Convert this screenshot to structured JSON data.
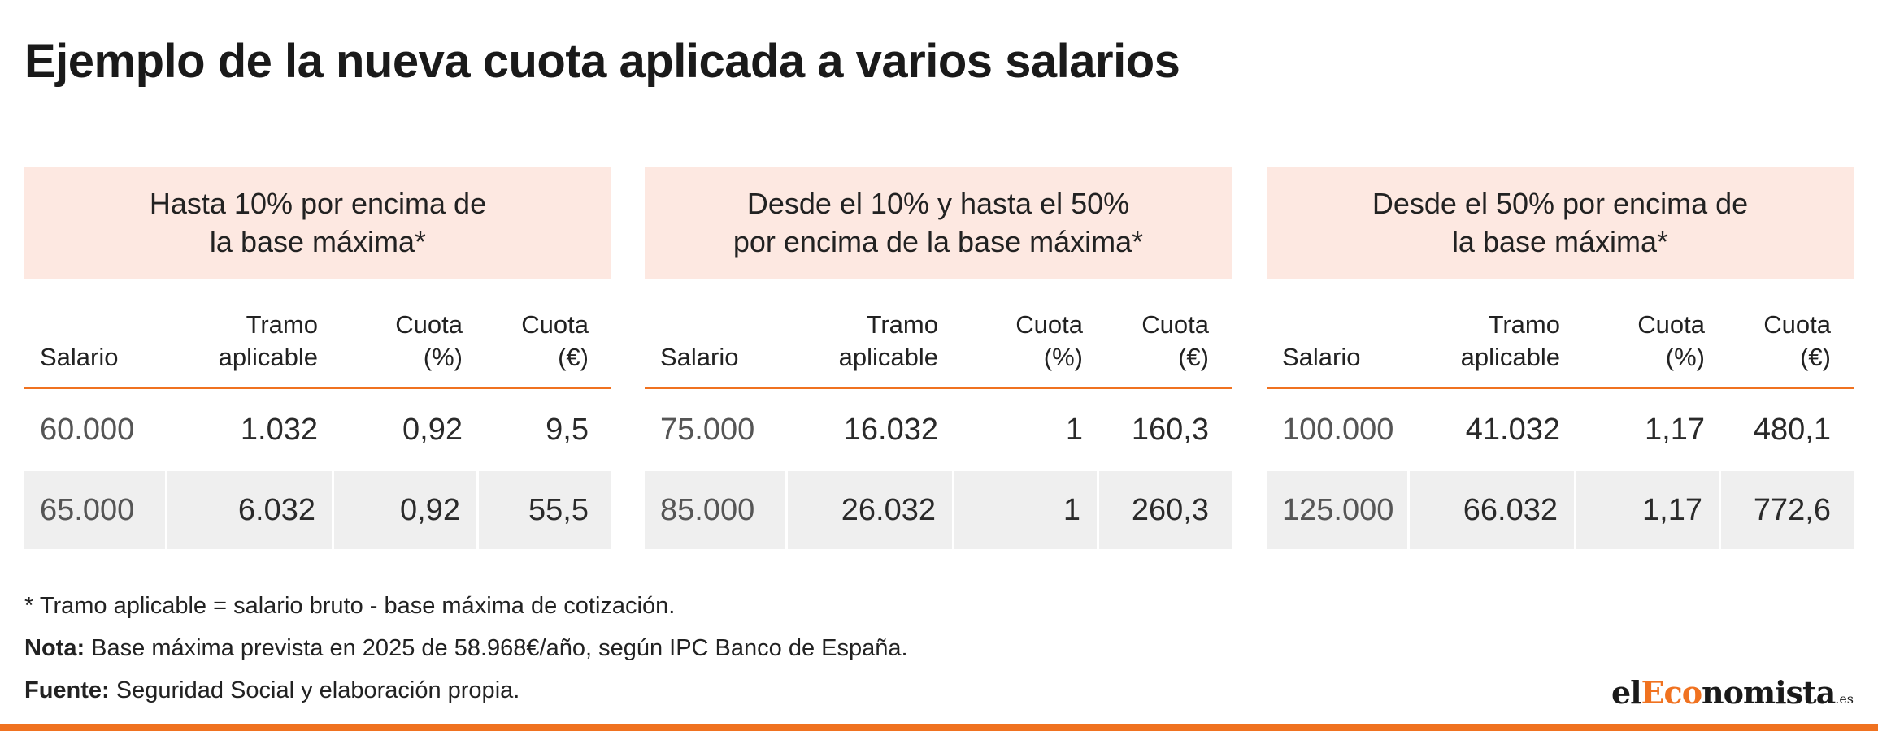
{
  "title": "Ejemplo de la nueva cuota aplicada a varios salarios",
  "colors": {
    "accent": "#f07220",
    "header_bg": "#fde8e1",
    "row_alt_bg": "#efefef"
  },
  "columns": [
    {
      "lines": [
        "Salario"
      ]
    },
    {
      "lines": [
        "Tramo",
        "aplicable"
      ]
    },
    {
      "lines": [
        "Cuota",
        "(%)"
      ]
    },
    {
      "lines": [
        "Cuota",
        "(€)"
      ]
    }
  ],
  "blocks": [
    {
      "header_lines": [
        "Hasta 10% por encima de",
        "la base máxima*"
      ],
      "rows": [
        [
          "60.000",
          "1.032",
          "0,92",
          "9,5"
        ],
        [
          "65.000",
          "6.032",
          "0,92",
          "55,5"
        ]
      ]
    },
    {
      "header_lines": [
        "Desde el 10% y hasta el 50%",
        "por encima de la base máxima*"
      ],
      "rows": [
        [
          "75.000",
          "16.032",
          "1",
          "160,3"
        ],
        [
          "85.000",
          "26.032",
          "1",
          "260,3"
        ]
      ]
    },
    {
      "header_lines": [
        "Desde el 50% por encima de",
        "la base máxima*"
      ],
      "rows": [
        [
          "100.000",
          "41.032",
          "1,17",
          "480,1"
        ],
        [
          "125.000",
          "66.032",
          "1,17",
          "772,6"
        ]
      ]
    }
  ],
  "footnote": "* Tramo aplicable = salario bruto - base máxima de cotización.",
  "note": {
    "label": "Nota:",
    "text": " Base máxima prevista en 2025 de 58.968€/año, según IPC Banco de España."
  },
  "source": {
    "label": "Fuente:",
    "text": " Seguridad Social y elaboración propia."
  },
  "logo": {
    "part1": "el",
    "part2": "Eco",
    "part3": "nomista",
    "tld": ".es"
  }
}
